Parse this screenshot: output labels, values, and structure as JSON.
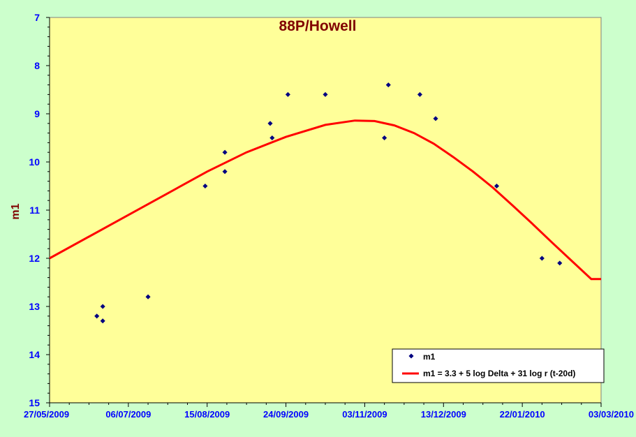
{
  "colors": {
    "background": "#ccffcc",
    "plot_area": "#ffff99",
    "title": "#800000",
    "ylabel": "#800000",
    "tick_labels": "#0000ff",
    "points": "#000080",
    "curve": "#ff0000"
  },
  "chart_data": {
    "type": "scatter",
    "title": "88P/Howell",
    "xlabel": "",
    "ylabel": "m1",
    "x_ticks": [
      "27/05/2009",
      "06/07/2009",
      "15/08/2009",
      "24/09/2009",
      "03/11/2009",
      "13/12/2009",
      "22/01/2010",
      "03/03/2010"
    ],
    "xlim": [
      "2009-05-27",
      "2010-03-03"
    ],
    "ylim": [
      7,
      15
    ],
    "y_reversed": true,
    "y_ticks": [
      7,
      8,
      9,
      10,
      11,
      12,
      13,
      14,
      15
    ],
    "grid": false,
    "legend_position": "bottom-right",
    "series": [
      {
        "name": "m1",
        "kind": "points",
        "points": [
          {
            "x": "2009-06-20",
            "y": 13.2
          },
          {
            "x": "2009-06-23",
            "y": 13.0
          },
          {
            "x": "2009-06-23",
            "y": 13.3
          },
          {
            "x": "2009-07-16",
            "y": 12.8
          },
          {
            "x": "2009-08-14",
            "y": 10.5
          },
          {
            "x": "2009-08-24",
            "y": 9.8
          },
          {
            "x": "2009-08-24",
            "y": 10.2
          },
          {
            "x": "2009-09-16",
            "y": 9.2
          },
          {
            "x": "2009-09-17",
            "y": 9.5
          },
          {
            "x": "2009-09-25",
            "y": 8.6
          },
          {
            "x": "2009-10-14",
            "y": 8.6
          },
          {
            "x": "2009-11-13",
            "y": 9.5
          },
          {
            "x": "2009-11-15",
            "y": 8.4
          },
          {
            "x": "2009-12-01",
            "y": 8.6
          },
          {
            "x": "2009-12-09",
            "y": 9.1
          },
          {
            "x": "2010-01-09",
            "y": 10.5
          },
          {
            "x": "2010-02-01",
            "y": 12.0
          },
          {
            "x": "2010-02-10",
            "y": 12.1
          }
        ]
      },
      {
        "name": "m1 = 3.3 + 5 log Delta + 31 log r (t-20d)",
        "kind": "line",
        "points": [
          {
            "x": "2009-05-27",
            "y": 12.0
          },
          {
            "x": "2009-06-16",
            "y": 11.55
          },
          {
            "x": "2009-07-06",
            "y": 11.1
          },
          {
            "x": "2009-07-26",
            "y": 10.65
          },
          {
            "x": "2009-08-15",
            "y": 10.2
          },
          {
            "x": "2009-09-04",
            "y": 9.8
          },
          {
            "x": "2009-09-24",
            "y": 9.48
          },
          {
            "x": "2009-10-14",
            "y": 9.23
          },
          {
            "x": "2009-10-29",
            "y": 9.14
          },
          {
            "x": "2009-11-08",
            "y": 9.15
          },
          {
            "x": "2009-11-18",
            "y": 9.24
          },
          {
            "x": "2009-11-28",
            "y": 9.4
          },
          {
            "x": "2009-12-08",
            "y": 9.62
          },
          {
            "x": "2009-12-18",
            "y": 9.9
          },
          {
            "x": "2009-12-28",
            "y": 10.2
          },
          {
            "x": "2010-01-07",
            "y": 10.53
          },
          {
            "x": "2010-01-17",
            "y": 10.9
          },
          {
            "x": "2010-01-27",
            "y": 11.28
          },
          {
            "x": "2010-02-06",
            "y": 11.67
          },
          {
            "x": "2010-02-16",
            "y": 12.05
          },
          {
            "x": "2010-02-26",
            "y": 12.43
          },
          {
            "x": "2010-03-03",
            "y": 12.43
          }
        ]
      }
    ]
  }
}
